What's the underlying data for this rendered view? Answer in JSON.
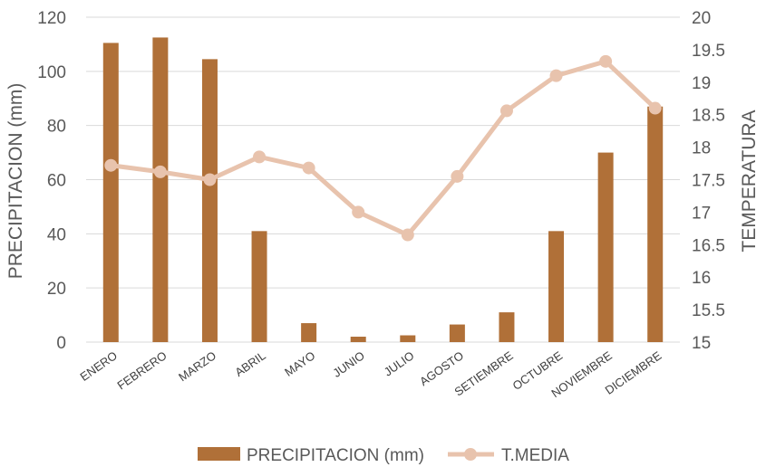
{
  "chart_data": {
    "type": "bar",
    "categories": [
      "ENERO",
      "FEBRERO",
      "MARZO",
      "ABRIL",
      "MAYO",
      "JUNIO",
      "JULIO",
      "AGOSTO",
      "SETIEMBRE",
      "OCTUBRE",
      "NOVIEMBRE",
      "DICIEMBRE"
    ],
    "series": [
      {
        "name": "PRECIPITACION (mm)",
        "type": "bar",
        "axis": "left",
        "color": "#b07038",
        "values": [
          110.5,
          112.5,
          104.5,
          41,
          7,
          2,
          2.5,
          6.5,
          11,
          41,
          70,
          87
        ]
      },
      {
        "name": "T.MEDIA",
        "type": "line",
        "axis": "right",
        "color": "#e8c3ad",
        "values": [
          17.72,
          17.62,
          17.5,
          17.85,
          17.68,
          17.0,
          16.65,
          17.55,
          18.56,
          19.1,
          19.32,
          18.6
        ]
      }
    ],
    "ylabel": "PRECIPITACION (mm)",
    "y2label": "TEMPERATURA",
    "ylim": [
      0,
      120
    ],
    "y2lim": [
      15,
      20
    ],
    "yticks": [
      "0",
      "20",
      "40",
      "60",
      "80",
      "100",
      "120"
    ],
    "y2ticks": [
      "15",
      "15.5",
      "16",
      "16.5",
      "17",
      "17.5",
      "18",
      "18.5",
      "19",
      "19.5",
      "20"
    ],
    "legend": [
      "PRECIPITACION (mm)",
      "T.MEDIA"
    ],
    "legend_position": "bottom",
    "grid": true
  }
}
